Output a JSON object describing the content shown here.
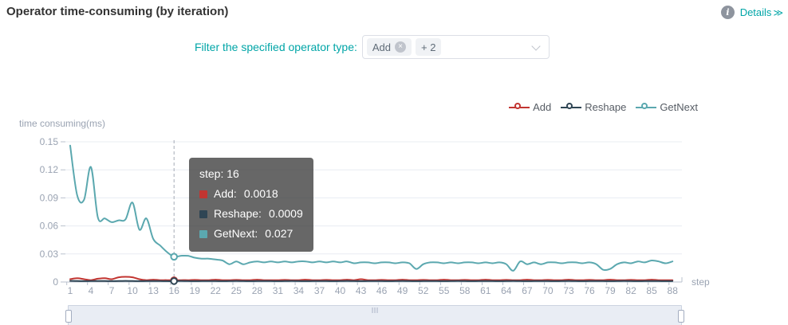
{
  "header": {
    "title": "Operator time-consuming (by iteration)",
    "info_glyph": "i",
    "details_label": "Details",
    "details_arrow": "≫"
  },
  "filter": {
    "label": "Filter the specified operator type:",
    "tags": [
      {
        "label": "Add",
        "removable": true
      },
      {
        "label": "+ 2",
        "removable": false
      }
    ]
  },
  "icons": {
    "remove_glyph": "×"
  },
  "legend": {
    "items": [
      {
        "label": "Add",
        "color": "#c23531"
      },
      {
        "label": "Reshape",
        "color": "#2f4554"
      },
      {
        "label": "GetNext",
        "color": "#5ba8af"
      }
    ]
  },
  "tooltip": {
    "title": "step: 16",
    "rows": [
      {
        "label": "Add:",
        "value": "0.0018",
        "color": "#c23531"
      },
      {
        "label": "Reshape:",
        "value": "0.0009",
        "color": "#2f4554"
      },
      {
        "label": "GetNext:",
        "value": "0.027",
        "color": "#5ba8af"
      }
    ]
  },
  "chart_data": {
    "type": "line",
    "title": "Operator time-consuming (by iteration)",
    "xlabel": "step",
    "ylabel": "time consuming(ms)",
    "ylim": [
      0,
      0.15
    ],
    "grid": "horizontal",
    "legend_position": "top-right",
    "xticks": [
      1,
      4,
      7,
      10,
      13,
      16,
      19,
      22,
      25,
      28,
      31,
      34,
      37,
      40,
      43,
      46,
      49,
      52,
      55,
      58,
      61,
      64,
      67,
      70,
      73,
      76,
      79,
      82,
      85,
      88
    ],
    "yticks": [
      0,
      0.03,
      0.06,
      0.09,
      0.12,
      0.15
    ],
    "x": [
      1,
      2,
      3,
      4,
      5,
      6,
      7,
      8,
      9,
      10,
      11,
      12,
      13,
      14,
      15,
      16,
      17,
      18,
      19,
      20,
      21,
      22,
      23,
      24,
      25,
      26,
      27,
      28,
      29,
      30,
      31,
      32,
      33,
      34,
      35,
      36,
      37,
      38,
      39,
      40,
      41,
      42,
      43,
      44,
      45,
      46,
      47,
      48,
      49,
      50,
      51,
      52,
      53,
      54,
      55,
      56,
      57,
      58,
      59,
      60,
      61,
      62,
      63,
      64,
      65,
      66,
      67,
      68,
      69,
      70,
      71,
      72,
      73,
      74,
      75,
      76,
      77,
      78,
      79,
      80,
      81,
      82,
      83,
      84,
      85,
      86,
      87,
      88
    ],
    "highlight": {
      "step": 16,
      "values": {
        "Add": 0.0018,
        "Reshape": 0.0009,
        "GetNext": 0.027
      }
    },
    "series": [
      {
        "name": "Add",
        "color": "#c23531",
        "values": [
          0.003,
          0.004,
          0.003,
          0.002,
          0.0035,
          0.004,
          0.003,
          0.005,
          0.0055,
          0.005,
          0.003,
          0.002,
          0.0025,
          0.002,
          0.002,
          0.0018,
          0.002,
          0.002,
          0.0022,
          0.002,
          0.002,
          0.0025,
          0.002,
          0.002,
          0.0022,
          0.002,
          0.002,
          0.0025,
          0.002,
          0.002,
          0.002,
          0.0022,
          0.002,
          0.002,
          0.0025,
          0.002,
          0.002,
          0.0022,
          0.002,
          0.002,
          0.0025,
          0.002,
          0.003,
          0.002,
          0.002,
          0.0022,
          0.002,
          0.002,
          0.0025,
          0.002,
          0.002,
          0.0022,
          0.002,
          0.002,
          0.0025,
          0.002,
          0.002,
          0.0022,
          0.002,
          0.002,
          0.0025,
          0.002,
          0.002,
          0.0022,
          0.002,
          0.002,
          0.0025,
          0.002,
          0.002,
          0.0022,
          0.002,
          0.002,
          0.0025,
          0.002,
          0.002,
          0.0022,
          0.002,
          0.002,
          0.0025,
          0.002,
          0.002,
          0.0022,
          0.002,
          0.002,
          0.0025,
          0.002,
          0.002,
          0.002
        ]
      },
      {
        "name": "Reshape",
        "color": "#2f4554",
        "values": [
          0.0012,
          0.001,
          0.0009,
          0.001,
          0.0011,
          0.001,
          0.0009,
          0.001,
          0.0012,
          0.001,
          0.0009,
          0.001,
          0.0011,
          0.001,
          0.0009,
          0.0009,
          0.0012,
          0.001,
          0.0009,
          0.001,
          0.0011,
          0.001,
          0.0009,
          0.001,
          0.0012,
          0.001,
          0.0009,
          0.001,
          0.0011,
          0.001,
          0.0009,
          0.001,
          0.0012,
          0.001,
          0.0009,
          0.001,
          0.0011,
          0.001,
          0.0009,
          0.001,
          0.0012,
          0.001,
          0.0009,
          0.001,
          0.0011,
          0.001,
          0.0009,
          0.001,
          0.0012,
          0.001,
          0.0009,
          0.001,
          0.0011,
          0.001,
          0.0009,
          0.001,
          0.0012,
          0.001,
          0.0009,
          0.001,
          0.0011,
          0.001,
          0.0009,
          0.001,
          0.0012,
          0.001,
          0.0009,
          0.001,
          0.0011,
          0.001,
          0.0009,
          0.001,
          0.0012,
          0.001,
          0.0009,
          0.001,
          0.0011,
          0.001,
          0.0009,
          0.001,
          0.0012,
          0.001,
          0.0009,
          0.001,
          0.0011,
          0.001,
          0.0009,
          0.001
        ]
      },
      {
        "name": "GetNext",
        "color": "#5ba8af",
        "values": [
          0.146,
          0.093,
          0.088,
          0.123,
          0.069,
          0.068,
          0.064,
          0.066,
          0.067,
          0.085,
          0.056,
          0.068,
          0.046,
          0.039,
          0.032,
          0.027,
          0.028,
          0.028,
          0.026,
          0.025,
          0.025,
          0.024,
          0.023,
          0.019,
          0.022,
          0.019,
          0.021,
          0.022,
          0.021,
          0.022,
          0.021,
          0.022,
          0.021,
          0.022,
          0.022,
          0.021,
          0.022,
          0.021,
          0.022,
          0.021,
          0.022,
          0.02,
          0.021,
          0.021,
          0.02,
          0.021,
          0.021,
          0.02,
          0.021,
          0.02,
          0.014,
          0.019,
          0.021,
          0.021,
          0.02,
          0.021,
          0.02,
          0.021,
          0.021,
          0.02,
          0.021,
          0.02,
          0.021,
          0.019,
          0.012,
          0.022,
          0.019,
          0.021,
          0.019,
          0.021,
          0.021,
          0.02,
          0.021,
          0.021,
          0.02,
          0.021,
          0.019,
          0.013,
          0.014,
          0.019,
          0.021,
          0.02,
          0.022,
          0.021,
          0.023,
          0.022,
          0.02,
          0.022
        ]
      }
    ]
  }
}
